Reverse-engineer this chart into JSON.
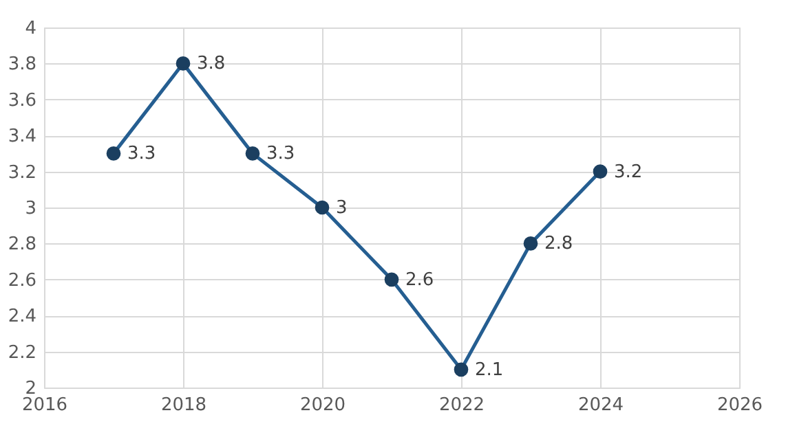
{
  "chart_data": {
    "type": "line",
    "x": [
      2017,
      2018,
      2019,
      2020,
      2021,
      2022,
      2023,
      2024
    ],
    "series": [
      {
        "color": "#255e91",
        "values": [
          3.3,
          3.8,
          3.3,
          3,
          2.6,
          2.1,
          2.8,
          3.2
        ]
      }
    ],
    "xlim": [
      2016,
      2026
    ],
    "xticks": [
      2016,
      2018,
      2020,
      2022,
      2024,
      2026
    ],
    "ylim": [
      2,
      4
    ],
    "yticks": [
      2,
      2.2,
      2.4,
      2.6,
      2.8,
      3,
      3.2,
      3.4,
      3.6,
      3.8,
      4
    ],
    "grid": true,
    "marker": "circle",
    "line_style": "solid",
    "data_labels": true
  }
}
